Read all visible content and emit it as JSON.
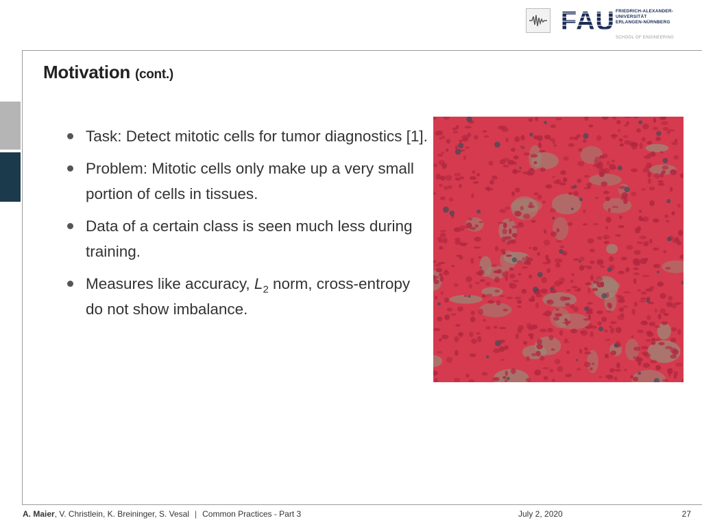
{
  "header": {
    "fau_wordmark": "FAU",
    "fau_lines": [
      "FRIEDRICH-ALEXANDER-",
      "UNIVERSITÄT",
      "ERLANGEN-NÜRNBERG"
    ],
    "school": "SCHOOL OF ENGINEERING",
    "small_logo_icon": "signal-waveform-icon"
  },
  "slide": {
    "title": "Motivation",
    "title_suffix": "(cont.)",
    "bullets": [
      {
        "text": "Task: Detect mitotic cells for tumor diagnostics [1]."
      },
      {
        "text": "Problem: Mitotic cells only make up a very small portion of cells in tissues."
      },
      {
        "text": "Data of a certain class is seen much less during training."
      },
      {
        "prefix": "Measures like accuracy, ",
        "math_var": "L",
        "math_sub": "2",
        "suffix": " norm, cross-entropy do not show imbalance."
      }
    ]
  },
  "footer": {
    "lead_author": "A. Maier",
    "coauthors": ", V. Christlein, K. Breininger, S. Vesal",
    "separator": "|",
    "lecture": "Common Practices - Part 3",
    "date": "July 2, 2020",
    "page_number": "27"
  },
  "colors": {
    "tissue_base": "#d63a4e",
    "nucleus": "#b02840",
    "stroma": "#9a8a78",
    "fau_blue": "#1a2b54",
    "sidebar_dark": "#1b3a4b"
  }
}
